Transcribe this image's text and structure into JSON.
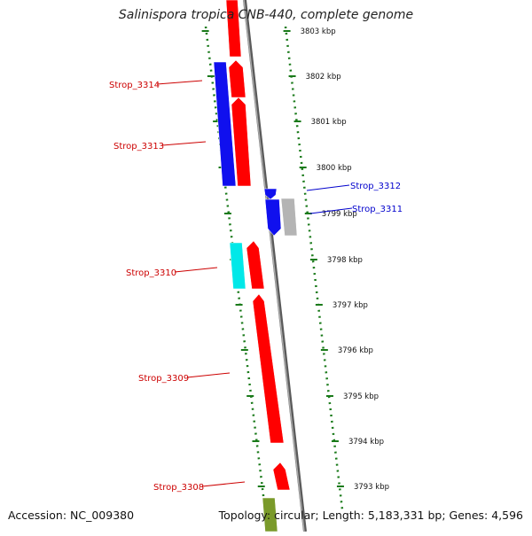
{
  "title": "Salinispora tropica CNB-440, complete genome",
  "footer": {
    "accession": "Accession: NC_009380",
    "summary": "Topology: circular; Length: 5,183,331 bp; Genes: 4,596"
  },
  "colors": {
    "forward_gene": "#ff0000",
    "reverse_gene": "#1010ee",
    "cyan_gene": "#00e8e8",
    "gray_gene": "#b4b4b4",
    "olive_gene": "#7a9a2a",
    "backbone": "#808080",
    "ticks": "#1a7a1a",
    "label_reverse": "#cc0000",
    "label_forward": "#0000cc"
  },
  "ticks": [
    {
      "label": "3803 kbp"
    },
    {
      "label": "3802 kbp"
    },
    {
      "label": "3801 kbp"
    },
    {
      "label": "3800 kbp"
    },
    {
      "label": "3799 kbp"
    },
    {
      "label": "3798 kbp"
    },
    {
      "label": "3797 kbp"
    },
    {
      "label": "3796 kbp"
    },
    {
      "label": "3795 kbp"
    },
    {
      "label": "3794 kbp"
    },
    {
      "label": "3793 kbp"
    }
  ],
  "gene_labels": [
    {
      "name": "Strop_3314"
    },
    {
      "name": "Strop_3313"
    },
    {
      "name": "Strop_3312"
    },
    {
      "name": "Strop_3311"
    },
    {
      "name": "Strop_3310"
    },
    {
      "name": "Strop_3309"
    },
    {
      "name": "Strop_3308"
    }
  ]
}
